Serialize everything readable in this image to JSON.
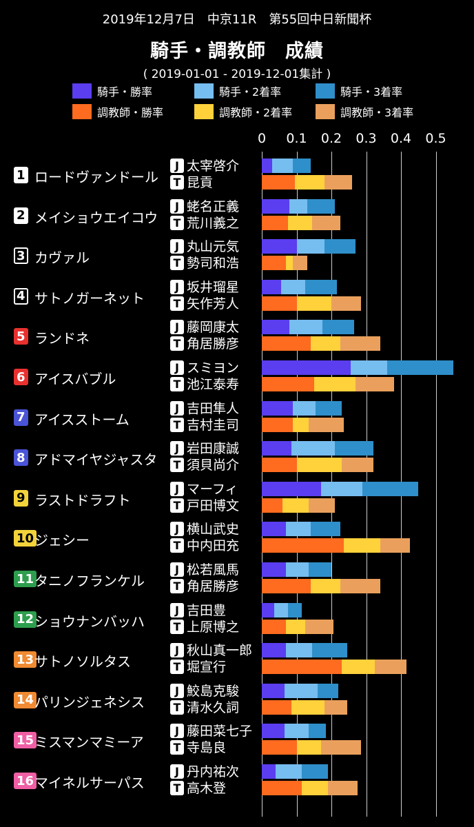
{
  "header": {
    "race": "2019年12月7日　中京11R　第55回中日新聞杯",
    "title": "騎手・調教師　成績",
    "period": "( 2019-01-01 - 2019-12-01集計 )"
  },
  "legend": [
    {
      "label": "騎手・勝率",
      "color": "#5a3ef0"
    },
    {
      "label": "騎手・2着率",
      "color": "#76bdf0"
    },
    {
      "label": "騎手・3着率",
      "color": "#2f8fca"
    },
    {
      "label": "調教師・勝率",
      "color": "#ff6b1f"
    },
    {
      "label": "調教師・2着率",
      "color": "#ffd13b"
    },
    {
      "label": "調教師・3着率",
      "color": "#eaa05c"
    }
  ],
  "chart_data": {
    "type": "bar",
    "stacked": true,
    "orientation": "horizontal",
    "xlim": [
      0,
      0.55
    ],
    "ticks": [
      "0",
      "0.1",
      "0.2",
      "0.3",
      "0.4",
      "0.5"
    ],
    "tick_values": [
      0,
      0.1,
      0.2,
      0.3,
      0.4,
      0.5
    ],
    "grid": true,
    "legend_position": "top",
    "jockey_prefix": "J",
    "trainer_prefix": "T",
    "horses": [
      {
        "num": "1",
        "name": "ロードヴァンドール",
        "num_bg": "#ffffff",
        "num_fg": "#000000",
        "num_border": "#ffffff",
        "jockey": "太宰啓介",
        "jockey_rates": [
          0.03,
          0.06,
          0.05
        ],
        "trainer": "昆貢",
        "trainer_rates": [
          0.095,
          0.085,
          0.08
        ]
      },
      {
        "num": "2",
        "name": "メイショウエイコウ",
        "num_bg": "#ffffff",
        "num_fg": "#000000",
        "num_border": "#ffffff",
        "jockey": "蛯名正義",
        "jockey_rates": [
          0.08,
          0.05,
          0.08
        ],
        "trainer": "荒川義之",
        "trainer_rates": [
          0.075,
          0.07,
          0.08
        ]
      },
      {
        "num": "3",
        "name": "カヴァル",
        "num_bg": "#000000",
        "num_fg": "#ffffff",
        "num_border": "#ffffff",
        "jockey": "丸山元気",
        "jockey_rates": [
          0.1,
          0.08,
          0.09
        ],
        "trainer": "勢司和浩",
        "trainer_rates": [
          0.07,
          0.02,
          0.04
        ]
      },
      {
        "num": "4",
        "name": "サトノガーネット",
        "num_bg": "#000000",
        "num_fg": "#ffffff",
        "num_border": "#ffffff",
        "jockey": "坂井瑠星",
        "jockey_rates": [
          0.055,
          0.07,
          0.09
        ],
        "trainer": "矢作芳人",
        "trainer_rates": [
          0.1,
          0.1,
          0.085
        ]
      },
      {
        "num": "5",
        "name": "ランドネ",
        "num_bg": "#e8312f",
        "num_fg": "#ffffff",
        "num_border": "#e8312f",
        "jockey": "藤岡康太",
        "jockey_rates": [
          0.08,
          0.095,
          0.09
        ],
        "trainer": "角居勝彦",
        "trainer_rates": [
          0.14,
          0.085,
          0.115
        ]
      },
      {
        "num": "6",
        "name": "アイスバブル",
        "num_bg": "#e8312f",
        "num_fg": "#ffffff",
        "num_border": "#e8312f",
        "jockey": "スミヨン",
        "jockey_rates": [
          0.255,
          0.105,
          0.19
        ],
        "trainer": "池江泰寿",
        "trainer_rates": [
          0.15,
          0.12,
          0.11
        ]
      },
      {
        "num": "7",
        "name": "アイスストーム",
        "num_bg": "#4a54d6",
        "num_fg": "#ffffff",
        "num_border": "#4a54d6",
        "jockey": "吉田隼人",
        "jockey_rates": [
          0.09,
          0.065,
          0.075
        ],
        "trainer": "吉村圭司",
        "trainer_rates": [
          0.09,
          0.045,
          0.1
        ]
      },
      {
        "num": "8",
        "name": "アドマイヤジャスタ",
        "num_bg": "#4a54d6",
        "num_fg": "#ffffff",
        "num_border": "#4a54d6",
        "jockey": "岩田康誠",
        "jockey_rates": [
          0.085,
          0.125,
          0.11
        ],
        "trainer": "須貝尚介",
        "trainer_rates": [
          0.1,
          0.13,
          0.09
        ]
      },
      {
        "num": "9",
        "name": "ラストドラフト",
        "num_bg": "#f2d33a",
        "num_fg": "#000000",
        "num_border": "#f2d33a",
        "jockey": "マーフィ",
        "jockey_rates": [
          0.17,
          0.12,
          0.16
        ],
        "trainer": "戸田博文",
        "trainer_rates": [
          0.06,
          0.075,
          0.075
        ]
      },
      {
        "num": "10",
        "name": "ジェシー",
        "num_bg": "#f2d33a",
        "num_fg": "#000000",
        "num_border": "#f2d33a",
        "jockey": "横山武史",
        "jockey_rates": [
          0.07,
          0.07,
          0.085
        ],
        "trainer": "中内田充",
        "trainer_rates": [
          0.235,
          0.105,
          0.085
        ]
      },
      {
        "num": "11",
        "name": "タニノフランケル",
        "num_bg": "#2e9e4e",
        "num_fg": "#ffffff",
        "num_border": "#2e9e4e",
        "jockey": "松若風馬",
        "jockey_rates": [
          0.07,
          0.065,
          0.065
        ],
        "trainer": "角居勝彦",
        "trainer_rates": [
          0.14,
          0.085,
          0.115
        ]
      },
      {
        "num": "12",
        "name": "ショウナンバッハ",
        "num_bg": "#2e9e4e",
        "num_fg": "#ffffff",
        "num_border": "#2e9e4e",
        "jockey": "吉田豊",
        "jockey_rates": [
          0.035,
          0.04,
          0.04
        ],
        "trainer": "上原博之",
        "trainer_rates": [
          0.07,
          0.055,
          0.08
        ]
      },
      {
        "num": "13",
        "name": "サトノソルタス",
        "num_bg": "#f08a33",
        "num_fg": "#ffffff",
        "num_border": "#f08a33",
        "jockey": "秋山真一郎",
        "jockey_rates": [
          0.07,
          0.075,
          0.1
        ],
        "trainer": "堀宣行",
        "trainer_rates": [
          0.23,
          0.095,
          0.09
        ]
      },
      {
        "num": "14",
        "name": "パリンジェネシス",
        "num_bg": "#f08a33",
        "num_fg": "#ffffff",
        "num_border": "#f08a33",
        "jockey": "鮫島克駿",
        "jockey_rates": [
          0.065,
          0.095,
          0.06
        ],
        "trainer": "清水久詞",
        "trainer_rates": [
          0.085,
          0.095,
          0.065
        ]
      },
      {
        "num": "15",
        "name": "ミスマンマミーア",
        "num_bg": "#f05fa5",
        "num_fg": "#ffffff",
        "num_border": "#f05fa5",
        "jockey": "藤田菜七子",
        "jockey_rates": [
          0.065,
          0.07,
          0.05
        ],
        "trainer": "寺島良",
        "trainer_rates": [
          0.1,
          0.07,
          0.115
        ]
      },
      {
        "num": "16",
        "name": "マイネルサーパス",
        "num_bg": "#f05fa5",
        "num_fg": "#ffffff",
        "num_border": "#f05fa5",
        "jockey": "丹内祐次",
        "jockey_rates": [
          0.04,
          0.075,
          0.075
        ],
        "trainer": "高木登",
        "trainer_rates": [
          0.115,
          0.075,
          0.085
        ]
      }
    ]
  }
}
